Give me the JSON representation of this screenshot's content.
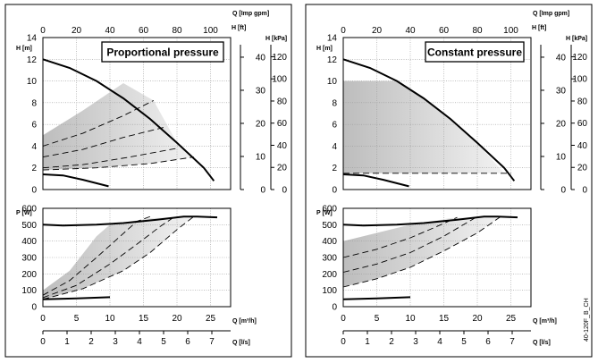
{
  "doc_code": "40-120F_B_CH",
  "chart_data": [
    {
      "type": "line",
      "title": "Proportional pressure",
      "top_panel": {
        "x_axis_label": "Q [Imp gpm]",
        "x_ticks": [
          "0",
          "20",
          "40",
          "60",
          "80",
          "100"
        ],
        "y_left_label": "H [m]",
        "y_left_ticks": [
          "0",
          "2",
          "4",
          "6",
          "8",
          "10",
          "12",
          "14"
        ],
        "y_ft_label": "H [ft]",
        "y_ft_ticks": [
          "0",
          "10",
          "20",
          "30",
          "40"
        ],
        "y_kpa_label": "H [kPa]",
        "y_kpa_ticks": [
          "0",
          "20",
          "40",
          "60",
          "80",
          "100",
          "120"
        ],
        "xlim_m3h": [
          0,
          28
        ],
        "ylim_m": [
          0,
          14
        ],
        "max_curve": [
          [
            0,
            12.0
          ],
          [
            4,
            11.2
          ],
          [
            8,
            10.0
          ],
          [
            12,
            8.4
          ],
          [
            16,
            6.5
          ],
          [
            20,
            4.3
          ],
          [
            24,
            2.0
          ],
          [
            25.5,
            0.8
          ]
        ],
        "min_curve": [
          [
            0,
            1.4
          ],
          [
            3,
            1.3
          ],
          [
            6,
            0.9
          ],
          [
            9.8,
            0.3
          ]
        ],
        "dashed_curves": [
          [
            [
              0,
              4.0
            ],
            [
              6,
              5.2
            ],
            [
              12,
              6.8
            ],
            [
              16.5,
              8.2
            ]
          ],
          [
            [
              0,
              3.0
            ],
            [
              6,
              3.7
            ],
            [
              12,
              4.8
            ],
            [
              18.5,
              5.8
            ]
          ],
          [
            [
              0,
              2.0
            ],
            [
              6,
              2.3
            ],
            [
              13,
              3.0
            ],
            [
              20,
              3.8
            ]
          ],
          [
            [
              0,
              1.8
            ],
            [
              8,
              2.0
            ],
            [
              16,
              2.4
            ],
            [
              22.5,
              3.0
            ]
          ]
        ],
        "shaded_region": [
          [
            0,
            5.0
          ],
          [
            6,
            7.3
          ],
          [
            12,
            9.8
          ],
          [
            16.5,
            8.2
          ],
          [
            20,
            4.3
          ],
          [
            22.5,
            3.0
          ],
          [
            16,
            2.4
          ],
          [
            8,
            2.0
          ],
          [
            0,
            1.8
          ]
        ]
      },
      "bottom_panel": {
        "y_label": "P [W]",
        "y_ticks": [
          "0",
          "100",
          "200",
          "300",
          "400",
          "500",
          "600"
        ],
        "ylim": [
          0,
          600
        ],
        "x_m3h_label": "Q [m³/h]",
        "x_m3h_ticks": [
          "0",
          "5",
          "10",
          "15",
          "20",
          "25"
        ],
        "x_ls_label": "Q [l/s]",
        "x_ls_ticks": [
          "0",
          "1",
          "2",
          "3",
          "4",
          "5",
          "6",
          "7"
        ],
        "max_curve": [
          [
            0,
            500
          ],
          [
            3,
            495
          ],
          [
            8,
            500
          ],
          [
            12,
            510
          ],
          [
            17,
            530
          ],
          [
            21,
            550
          ],
          [
            23,
            550
          ],
          [
            26,
            545
          ]
        ],
        "min_curve": [
          [
            0,
            45
          ],
          [
            5,
            50
          ],
          [
            10,
            58
          ]
        ],
        "dashed_curves": [
          [
            [
              0,
              70
            ],
            [
              4,
              160
            ],
            [
              8,
              300
            ],
            [
              11,
              410
            ],
            [
              14,
              520
            ],
            [
              16,
              550
            ]
          ],
          [
            [
              0,
              55
            ],
            [
              5,
              130
            ],
            [
              10,
              260
            ],
            [
              14,
              380
            ],
            [
              17.5,
              490
            ],
            [
              19.5,
              545
            ]
          ],
          [
            [
              0,
              45
            ],
            [
              6,
              110
            ],
            [
              12,
              220
            ],
            [
              16,
              330
            ],
            [
              20,
              470
            ],
            [
              22.5,
              550
            ]
          ]
        ],
        "shaded_region": [
          [
            0,
            100
          ],
          [
            4,
            220
          ],
          [
            8,
            430
          ],
          [
            10,
            500
          ],
          [
            16,
            540
          ],
          [
            22.5,
            550
          ],
          [
            20,
            470
          ],
          [
            16,
            330
          ],
          [
            12,
            220
          ],
          [
            6,
            110
          ],
          [
            0,
            45
          ]
        ]
      }
    },
    {
      "type": "line",
      "title": "Constant pressure",
      "top_panel": {
        "x_axis_label": "Q [Imp gpm]",
        "x_ticks": [
          "0",
          "20",
          "40",
          "60",
          "80",
          "100"
        ],
        "y_left_label": "H [m]",
        "y_left_ticks": [
          "0",
          "2",
          "4",
          "6",
          "8",
          "10",
          "12",
          "14"
        ],
        "y_ft_label": "H [ft]",
        "y_ft_ticks": [
          "0",
          "10",
          "20",
          "30",
          "40"
        ],
        "y_kpa_label": "H [kPa]",
        "y_kpa_ticks": [
          "0",
          "20",
          "40",
          "60",
          "80",
          "100",
          "120"
        ],
        "xlim_m3h": [
          0,
          28
        ],
        "ylim_m": [
          0,
          14
        ],
        "max_curve": [
          [
            0,
            12.0
          ],
          [
            4,
            11.2
          ],
          [
            8,
            10.0
          ],
          [
            12,
            8.4
          ],
          [
            16,
            6.5
          ],
          [
            20,
            4.3
          ],
          [
            24,
            2.0
          ],
          [
            25.5,
            0.8
          ]
        ],
        "min_curve": [
          [
            0,
            1.4
          ],
          [
            3,
            1.3
          ],
          [
            6,
            0.9
          ],
          [
            9.8,
            0.3
          ]
        ],
        "dashed_curves": [
          [
            [
              0,
              1.5
            ],
            [
              10,
              1.5
            ],
            [
              25,
              1.5
            ]
          ]
        ],
        "shaded_region": [
          [
            0,
            10.0
          ],
          [
            8,
            10.0
          ],
          [
            12,
            8.4
          ],
          [
            16,
            6.5
          ],
          [
            20,
            4.3
          ],
          [
            24,
            1.5
          ],
          [
            0,
            1.5
          ]
        ]
      },
      "bottom_panel": {
        "y_label": "P [W]",
        "y_ticks": [
          "0",
          "100",
          "200",
          "300",
          "400",
          "500",
          "600"
        ],
        "ylim": [
          0,
          600
        ],
        "x_m3h_label": "Q [m³/h]",
        "x_m3h_ticks": [
          "0",
          "5",
          "10",
          "15",
          "20",
          "25"
        ],
        "x_ls_label": "Q [l/s]",
        "x_ls_ticks": [
          "0",
          "1",
          "2",
          "3",
          "4",
          "5",
          "6",
          "7"
        ],
        "max_curve": [
          [
            0,
            500
          ],
          [
            3,
            495
          ],
          [
            8,
            500
          ],
          [
            12,
            510
          ],
          [
            17,
            530
          ],
          [
            21,
            550
          ],
          [
            23,
            550
          ],
          [
            26,
            545
          ]
        ],
        "min_curve": [
          [
            0,
            45
          ],
          [
            5,
            50
          ],
          [
            10,
            58
          ]
        ],
        "dashed_curves": [
          [
            [
              0,
              300
            ],
            [
              5,
              350
            ],
            [
              10,
              420
            ],
            [
              14,
              490
            ],
            [
              17,
              545
            ]
          ],
          [
            [
              0,
              210
            ],
            [
              5,
              260
            ],
            [
              10,
              330
            ],
            [
              15,
              430
            ],
            [
              20,
              550
            ]
          ],
          [
            [
              0,
              120
            ],
            [
              5,
              170
            ],
            [
              10,
              240
            ],
            [
              15,
              340
            ],
            [
              20,
              450
            ],
            [
              23.5,
              550
            ]
          ]
        ],
        "shaded_region": [
          [
            0,
            400
          ],
          [
            10,
            500
          ],
          [
            16,
            540
          ],
          [
            23.5,
            550
          ],
          [
            20,
            450
          ],
          [
            15,
            340
          ],
          [
            10,
            240
          ],
          [
            5,
            170
          ],
          [
            0,
            120
          ]
        ]
      }
    }
  ]
}
